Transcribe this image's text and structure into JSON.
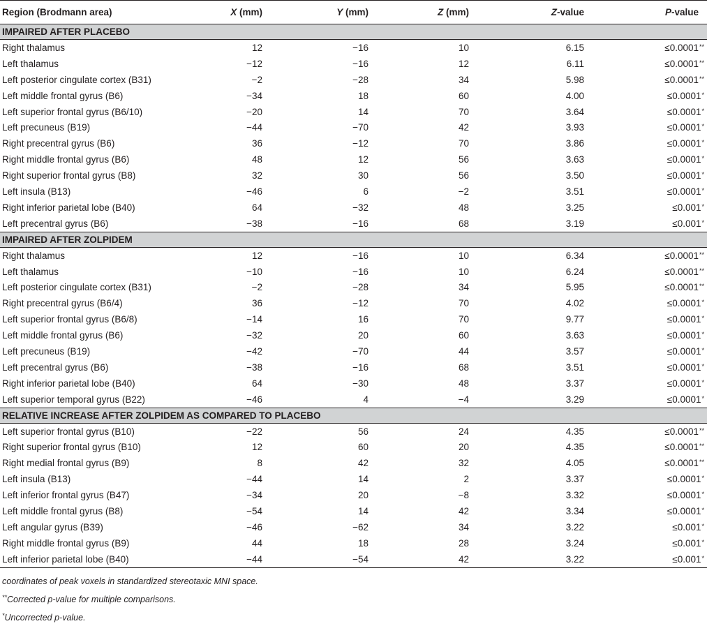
{
  "table": {
    "headers": {
      "region": "Region (Brodmann area)",
      "x_var": "X",
      "x_unit": " (mm)",
      "y_var": "Y",
      "y_unit": " (mm)",
      "z_var": "Z",
      "z_unit": " (mm)",
      "zv_var": "Z",
      "zv_unit": "-value",
      "p_var": "P",
      "p_unit": "-value"
    },
    "sections": [
      {
        "title": "IMPAIRED AFTER PLACEBO",
        "rows": [
          {
            "region": "Right thalamus",
            "x": "12",
            "y": "−16",
            "z": "10",
            "zv": "6.15",
            "p": "≤0.0001",
            "mark": "**"
          },
          {
            "region": "Left thalamus",
            "x": "−12",
            "y": "−16",
            "z": "12",
            "zv": "6.11",
            "p": "≤0.0001",
            "mark": "**"
          },
          {
            "region": "Left posterior cingulate cortex (B31)",
            "x": "−2",
            "y": "−28",
            "z": "34",
            "zv": "5.98",
            "p": "≤0.0001",
            "mark": "**"
          },
          {
            "region": "Left middle frontal gyrus (B6)",
            "x": "−34",
            "y": "18",
            "z": "60",
            "zv": "4.00",
            "p": "≤0.0001",
            "mark": "*"
          },
          {
            "region": "Left superior frontal gyrus (B6/10)",
            "x": "−20",
            "y": "14",
            "z": "70",
            "zv": "3.64",
            "p": "≤0.0001",
            "mark": "*"
          },
          {
            "region": "Left precuneus (B19)",
            "x": "−44",
            "y": "−70",
            "z": "42",
            "zv": "3.93",
            "p": "≤0.0001",
            "mark": "*"
          },
          {
            "region": "Right precentral gyrus (B6)",
            "x": "36",
            "y": "−12",
            "z": "70",
            "zv": "3.86",
            "p": "≤0.0001",
            "mark": "*"
          },
          {
            "region": "Right middle frontal gyrus (B6)",
            "x": "48",
            "y": "12",
            "z": "56",
            "zv": "3.63",
            "p": "≤0.0001",
            "mark": "*"
          },
          {
            "region": "Right superior frontal gyrus (B8)",
            "x": "32",
            "y": "30",
            "z": "56",
            "zv": "3.50",
            "p": "≤0.0001",
            "mark": "*"
          },
          {
            "region": "Left insula (B13)",
            "x": "−46",
            "y": "6",
            "z": "−2",
            "zv": "3.51",
            "p": "≤0.0001",
            "mark": "*"
          },
          {
            "region": "Right inferior parietal lobe (B40)",
            "x": "64",
            "y": "−32",
            "z": "48",
            "zv": "3.25",
            "p": "≤0.001",
            "mark": "*"
          },
          {
            "region": "Left precentral gyrus (B6)",
            "x": "−38",
            "y": "−16",
            "z": "68",
            "zv": "3.19",
            "p": "≤0.001",
            "mark": "*"
          }
        ]
      },
      {
        "title": "IMPAIRED AFTER ZOLPIDEM",
        "rows": [
          {
            "region": "Right thalamus",
            "x": "12",
            "y": "−16",
            "z": "10",
            "zv": "6.34",
            "p": "≤0.0001",
            "mark": "**"
          },
          {
            "region": "Left thalamus",
            "x": "−10",
            "y": "−16",
            "z": "10",
            "zv": "6.24",
            "p": "≤0.0001",
            "mark": "**"
          },
          {
            "region": "Left posterior cingulate cortex (B31)",
            "x": "−2",
            "y": "−28",
            "z": "34",
            "zv": "5.95",
            "p": "≤0.0001",
            "mark": "**"
          },
          {
            "region": "Right precentral gyrus (B6/4)",
            "x": "36",
            "y": "−12",
            "z": "70",
            "zv": "4.02",
            "p": "≤0.0001",
            "mark": "*"
          },
          {
            "region": "Left superior frontal gyrus (B6/8)",
            "x": "−14",
            "y": "16",
            "z": "70",
            "zv": "9.77",
            "p": "≤0.0001",
            "mark": "*"
          },
          {
            "region": "Left middle frontal gyrus (B6)",
            "x": "−32",
            "y": "20",
            "z": "60",
            "zv": "3.63",
            "p": "≤0.0001",
            "mark": "*"
          },
          {
            "region": "Left precuneus (B19)",
            "x": "−42",
            "y": "−70",
            "z": "44",
            "zv": "3.57",
            "p": "≤0.0001",
            "mark": "*"
          },
          {
            "region": "Left precentral gyrus (B6)",
            "x": "−38",
            "y": "−16",
            "z": "68",
            "zv": "3.51",
            "p": "≤0.0001",
            "mark": "*"
          },
          {
            "region": "Right inferior parietal lobe (B40)",
            "x": "64",
            "y": "−30",
            "z": "48",
            "zv": "3.37",
            "p": "≤0.0001",
            "mark": "*"
          },
          {
            "region": "Left superior temporal gyrus (B22)",
            "x": "−46",
            "y": "4",
            "z": "−4",
            "zv": "3.29",
            "p": "≤0.0001",
            "mark": "*"
          }
        ]
      },
      {
        "title": "RELATIVE INCREASE AFTER ZOLPIDEM AS COMPARED TO PLACEBO",
        "rows": [
          {
            "region": "Left superior frontal gyrus (B10)",
            "x": "−22",
            "y": "56",
            "z": "24",
            "zv": "4.35",
            "p": "≤0.0001",
            "mark": "**"
          },
          {
            "region": "Right superior frontal gyrus (B10)",
            "x": "12",
            "y": "60",
            "z": "20",
            "zv": "4.35",
            "p": "≤0.0001",
            "mark": "**"
          },
          {
            "region": "Right medial frontal gyrus (B9)",
            "x": "8",
            "y": "42",
            "z": "32",
            "zv": "4.05",
            "p": "≤0.0001",
            "mark": "**"
          },
          {
            "region": "Left insula (B13)",
            "x": "−44",
            "y": "14",
            "z": "2",
            "zv": "3.37",
            "p": "≤0.0001",
            "mark": "*"
          },
          {
            "region": "Left inferior frontal gyrus (B47)",
            "x": "−34",
            "y": "20",
            "z": "−8",
            "zv": "3.32",
            "p": "≤0.0001",
            "mark": "*"
          },
          {
            "region": "Left middle frontal gyrus (B8)",
            "x": "−54",
            "y": "14",
            "z": "42",
            "zv": "3.34",
            "p": "≤0.0001",
            "mark": "*"
          },
          {
            "region": "Left angular gyrus (B39)",
            "x": "−46",
            "y": "−62",
            "z": "34",
            "zv": "3.22",
            "p": "≤0.001",
            "mark": "*"
          },
          {
            "region": "Right middle frontal gyrus (B9)",
            "x": "44",
            "y": "18",
            "z": "28",
            "zv": "3.24",
            "p": "≤0.001",
            "mark": "*"
          },
          {
            "region": "Left inferior parietal lobe (B40)",
            "x": "−44",
            "y": "−54",
            "z": "42",
            "zv": "3.22",
            "p": "≤0.001",
            "mark": "*"
          }
        ]
      }
    ]
  },
  "footnotes": {
    "note_coordinates": "coordinates of peak voxels in standardized stereotaxic MNI space.",
    "note_corrected_mark": "**",
    "note_corrected": "Corrected p-value for multiple comparisons.",
    "note_uncorrected_mark": "*",
    "note_uncorrected": "Uncorrected p-value."
  }
}
